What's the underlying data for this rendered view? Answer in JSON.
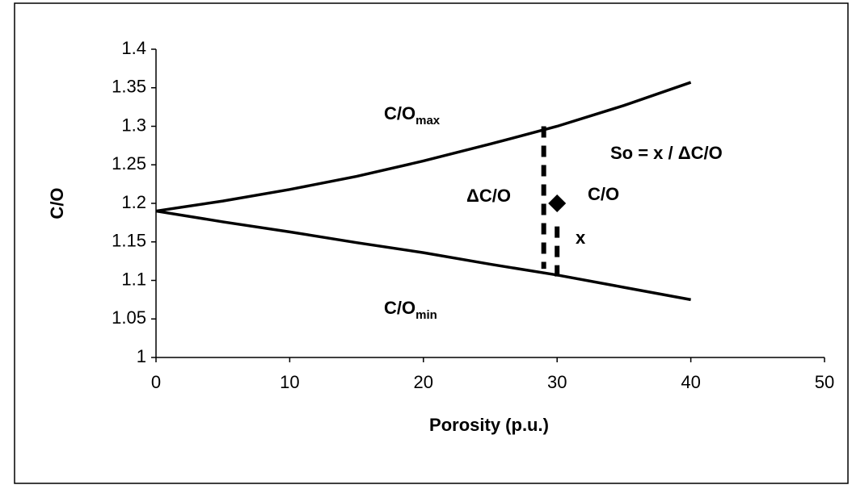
{
  "chart_data": {
    "type": "line",
    "x_label": "Porosity (p.u.)",
    "y_label": "C/O",
    "xlim": [
      0,
      50
    ],
    "xticks": [
      0,
      10,
      20,
      30,
      40,
      50
    ],
    "ylim": [
      1,
      1.4
    ],
    "yticks": [
      1,
      1.05,
      1.1,
      1.15,
      1.2,
      1.25,
      1.3,
      1.35,
      1.4
    ],
    "grid": false,
    "series": [
      {
        "color": "#000000",
        "style": "solid",
        "x": [
          0,
          5,
          10,
          15,
          20,
          25,
          30,
          35,
          40
        ],
        "values": [
          1.19,
          1.203,
          1.218,
          1.235,
          1.255,
          1.277,
          1.3,
          1.327,
          1.357
        ]
      },
      {
        "color": "#000000",
        "style": "solid",
        "x": [
          0,
          5,
          10,
          15,
          20,
          25,
          30,
          35,
          40
        ],
        "values": [
          1.19,
          1.176,
          1.163,
          1.149,
          1.136,
          1.121,
          1.107,
          1.091,
          1.075
        ]
      },
      {
        "color": "#000000",
        "style": "dashed",
        "x": [
          29,
          29
        ],
        "values": [
          1.3,
          1.115
        ]
      },
      {
        "color": "#000000",
        "style": "dashed",
        "x": [
          30,
          30
        ],
        "values": [
          1.17,
          1.105
        ]
      },
      {
        "color": "#000000",
        "style": "diamond",
        "x": [
          30
        ],
        "values": [
          1.2
        ]
      }
    ],
    "annotations": [
      {
        "text": "C/O",
        "sub": "max"
      },
      {
        "text": "C/O",
        "sub": "min"
      },
      {
        "text": "So = x / ΔC/O"
      },
      {
        "text": "ΔC/O"
      },
      {
        "text": "C/O"
      },
      {
        "text": "x"
      }
    ]
  }
}
